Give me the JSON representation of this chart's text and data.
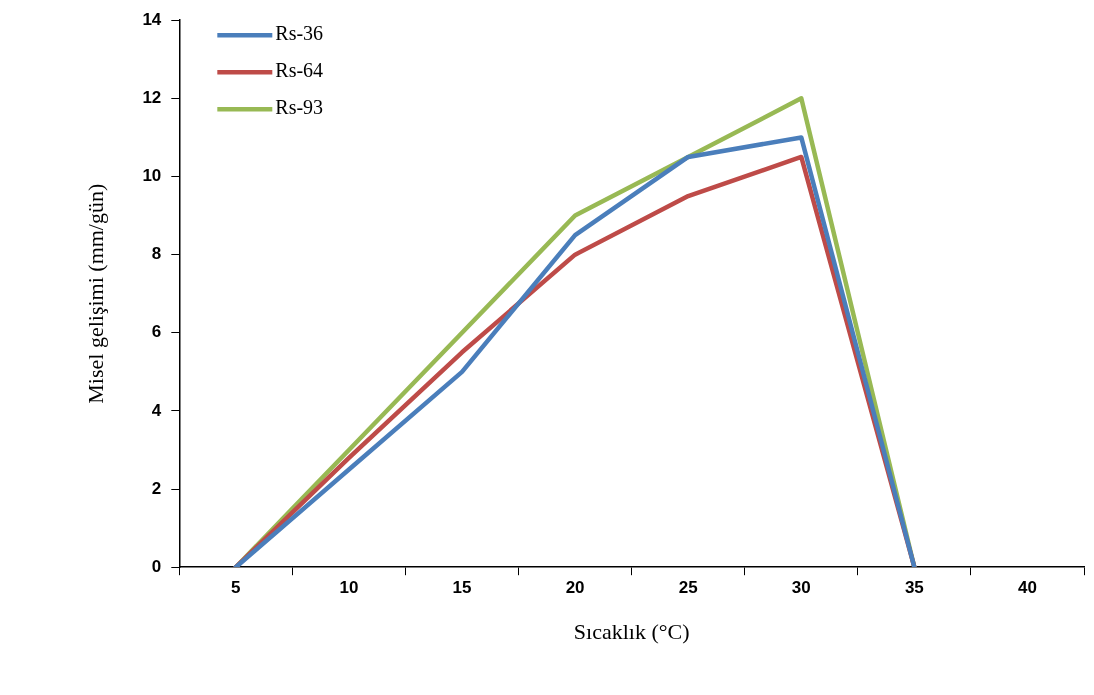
{
  "chart_data": {
    "type": "line",
    "xlabel": "Sıcaklık (°C)",
    "ylabel": "Misel gelişimi (mm/gün)",
    "categories": [
      "5",
      "10",
      "15",
      "20",
      "25",
      "30",
      "35",
      "40"
    ],
    "series": [
      {
        "name": "Rs-36",
        "color": "#4a7ebb",
        "values": [
          0,
          2.5,
          5,
          8.5,
          10.5,
          11,
          0,
          null
        ]
      },
      {
        "name": "Rs-64",
        "color": "#be4b48",
        "values": [
          0,
          2.8,
          5.5,
          8,
          9.5,
          10.5,
          0,
          null
        ]
      },
      {
        "name": "Rs-93",
        "color": "#98b954",
        "values": [
          0,
          3,
          6,
          9,
          10.5,
          12,
          0,
          null
        ]
      }
    ],
    "ylim": [
      0,
      14
    ],
    "yticks": [
      0,
      2,
      4,
      6,
      8,
      10,
      12,
      14
    ],
    "grid": false,
    "legend": "top left",
    "marker": "none",
    "line_style": "solid"
  }
}
